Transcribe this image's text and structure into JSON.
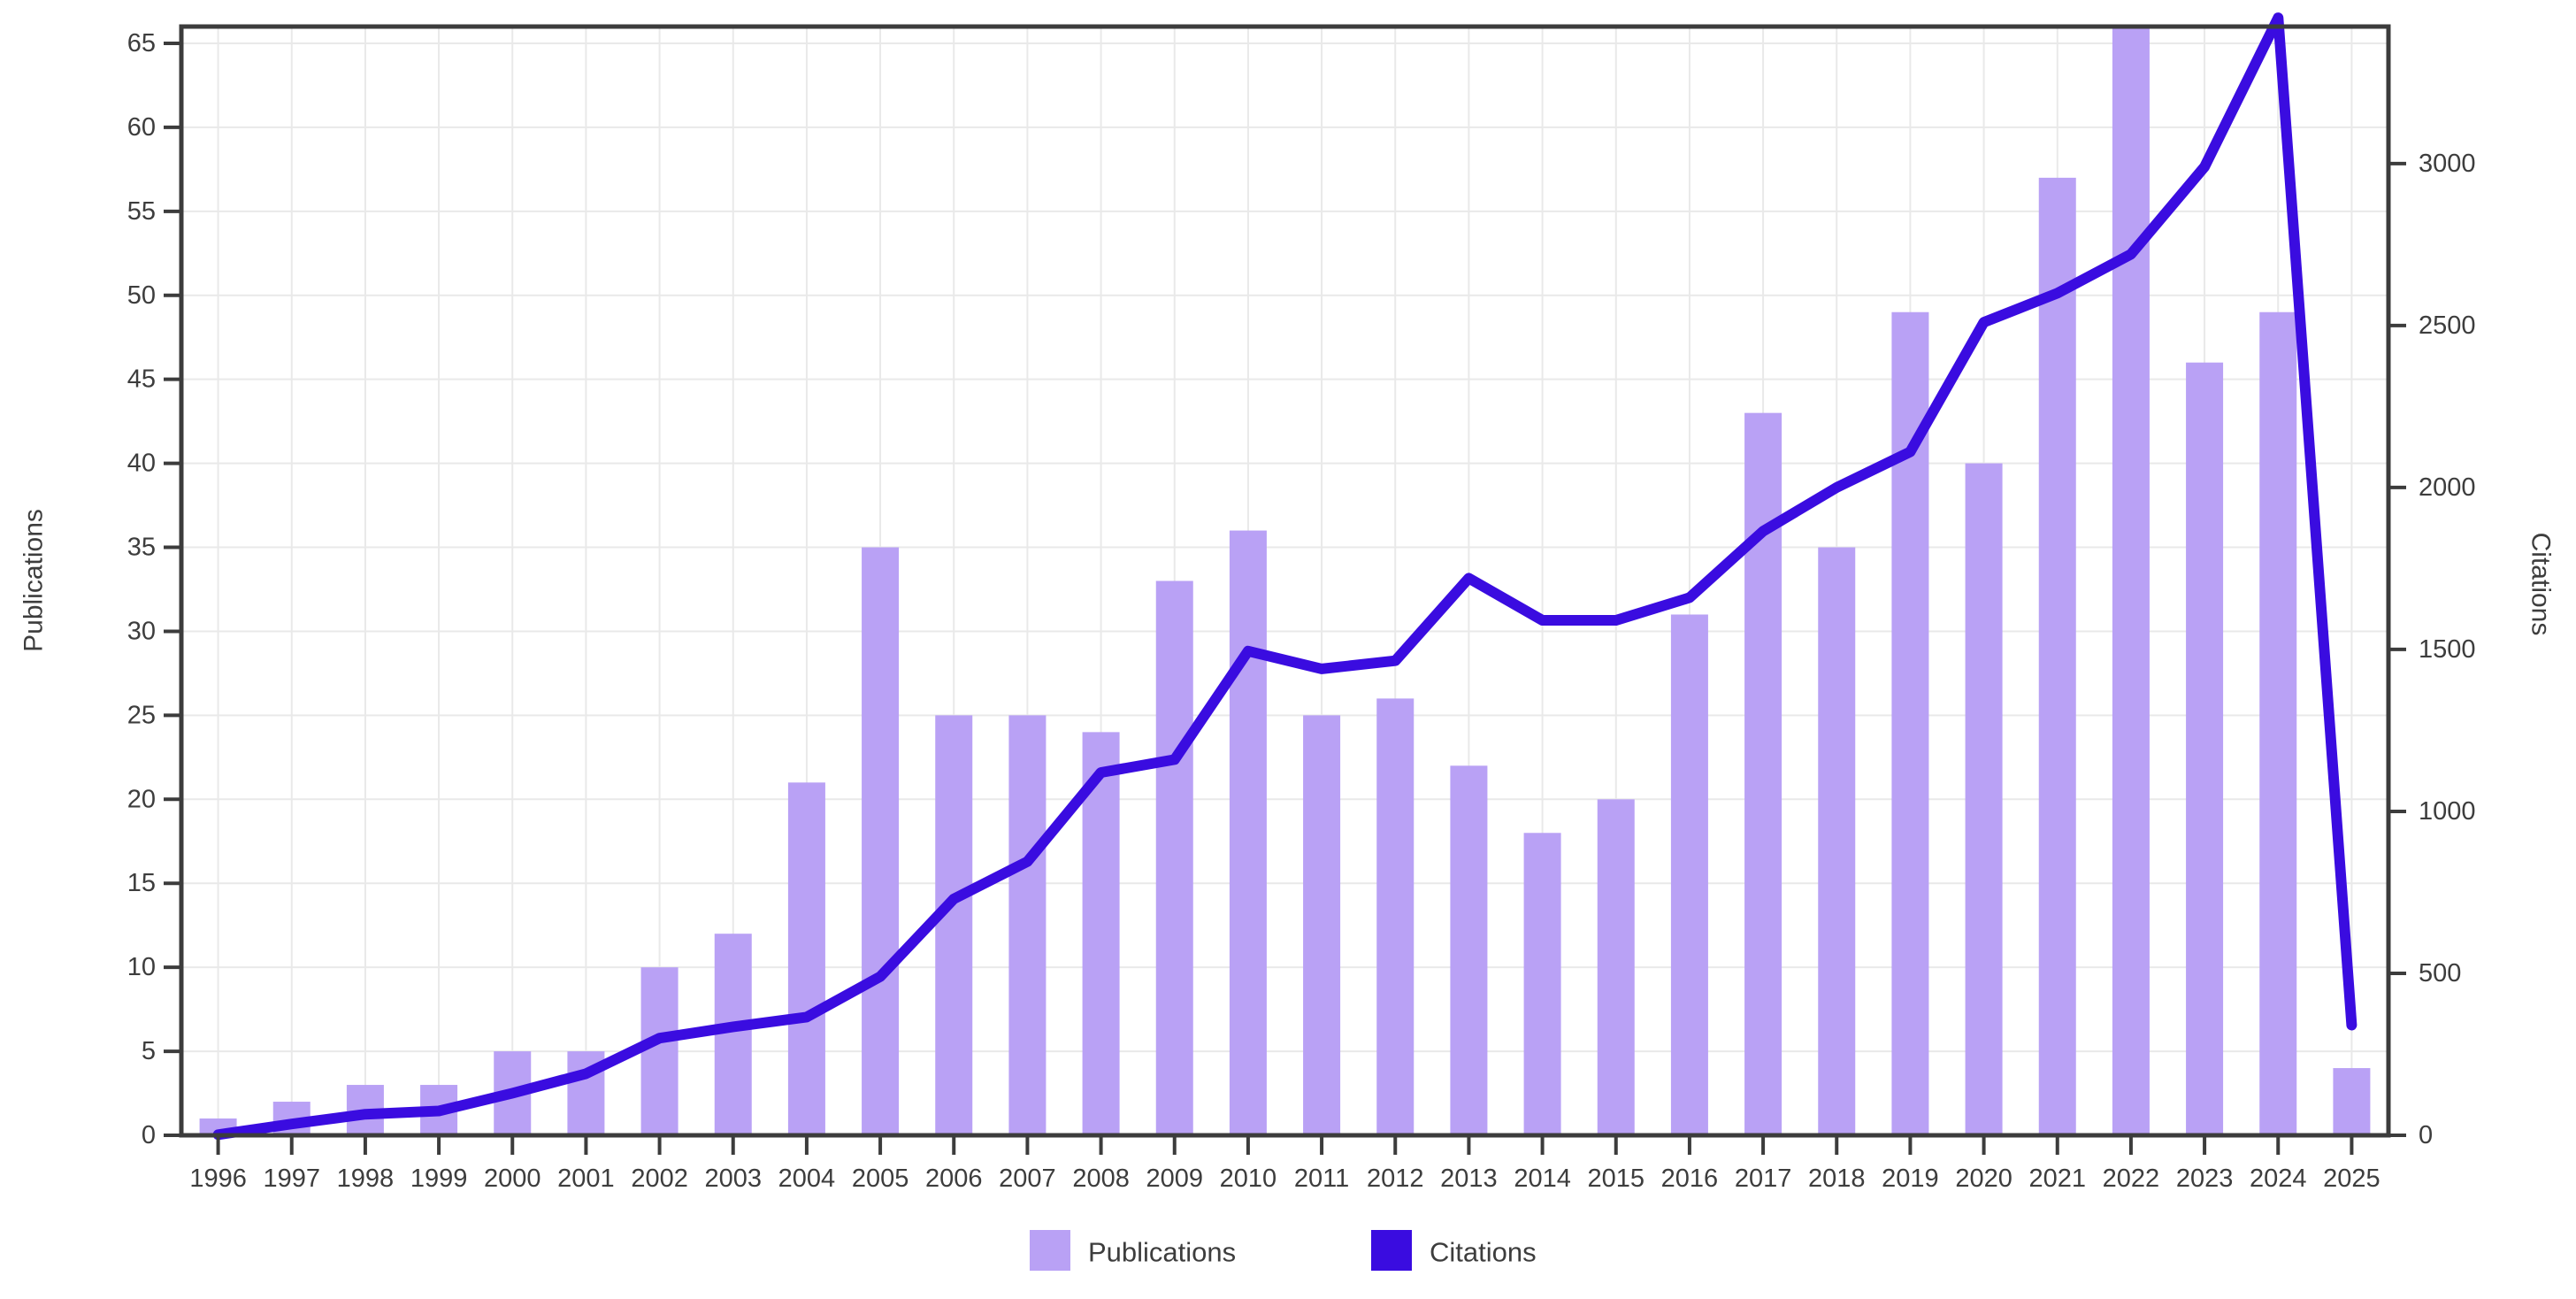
{
  "chart_data": {
    "type": "combo",
    "title": "",
    "x": [
      1996,
      1997,
      1998,
      1999,
      2000,
      2001,
      2002,
      2003,
      2004,
      2005,
      2006,
      2007,
      2008,
      2009,
      2010,
      2011,
      2012,
      2013,
      2014,
      2015,
      2016,
      2017,
      2018,
      2019,
      2020,
      2021,
      2022,
      2023,
      2024,
      2025
    ],
    "series": [
      {
        "name": "Publications",
        "type": "bar",
        "axis": "left",
        "color": "#b9a1f5",
        "values": [
          1,
          2,
          3,
          3,
          5,
          5,
          10,
          12,
          21,
          35,
          25,
          25,
          24,
          33,
          36,
          25,
          26,
          22,
          18,
          20,
          31,
          43,
          35,
          49,
          40,
          57,
          66,
          46,
          49,
          4
        ]
      },
      {
        "name": "Citations",
        "type": "line",
        "axis": "right",
        "color": "#3a0ce0",
        "values": [
          2,
          35,
          65,
          75,
          130,
          190,
          300,
          335,
          365,
          490,
          730,
          845,
          1120,
          1160,
          1495,
          1440,
          1465,
          1720,
          1590,
          1590,
          1660,
          1865,
          2000,
          2110,
          2510,
          2600,
          2720,
          2990,
          3450,
          340
        ]
      }
    ],
    "left_axis": {
      "title": "Publications",
      "min": 0,
      "max": 66,
      "tick_step": 5,
      "tick_labels": [
        0,
        5,
        10,
        15,
        20,
        25,
        30,
        35,
        40,
        45,
        50,
        55,
        60,
        65
      ]
    },
    "right_axis": {
      "title": "Citations",
      "min": 0,
      "max": 3423,
      "tick_step": 500,
      "tick_labels": [
        0,
        500,
        1000,
        1500,
        2000,
        2500,
        3000
      ]
    },
    "grid": true,
    "legend_position": "bottom-center",
    "legend": [
      {
        "label": "Publications",
        "color": "#b9a1f5"
      },
      {
        "label": "Citations",
        "color": "#3a0ce0"
      }
    ]
  },
  "colors": {
    "background": "#ffffff",
    "grid": "#e9e9e9",
    "axis": "#3c3c3c",
    "text": "#3d3d3d",
    "bar_fill": "#b9a1f5",
    "line_stroke": "#3a0ce0"
  }
}
